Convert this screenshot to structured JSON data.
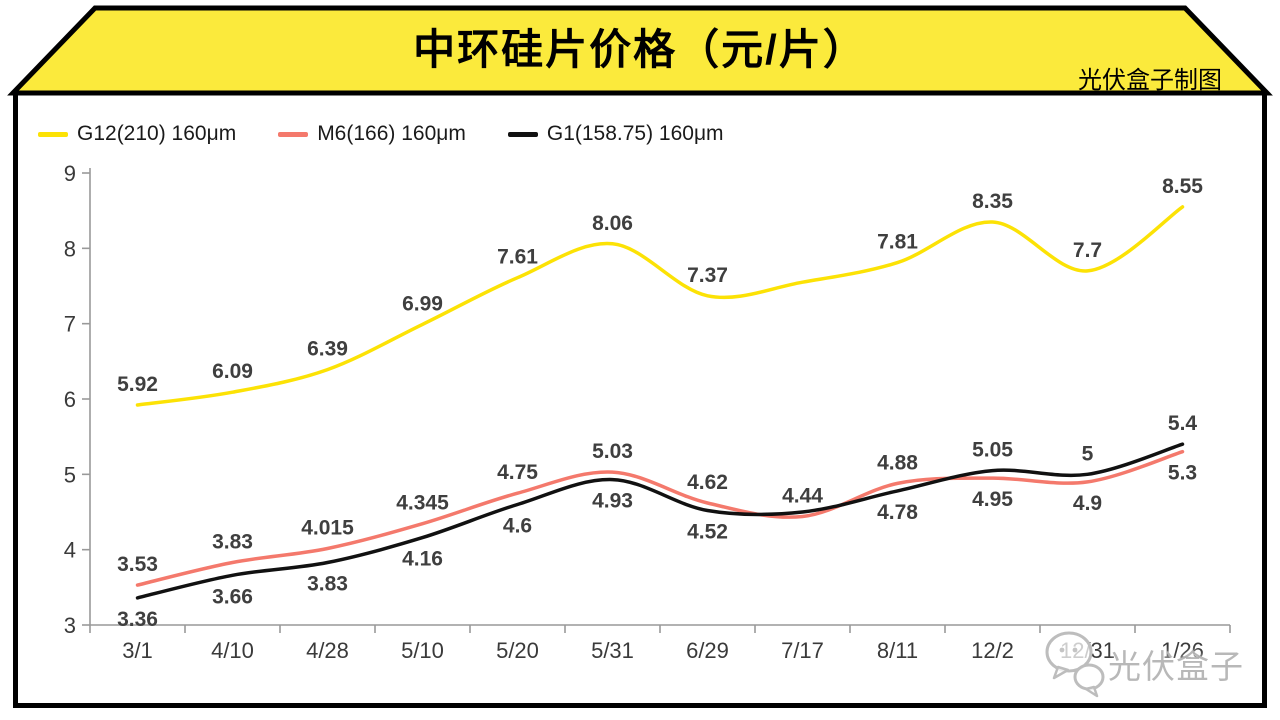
{
  "banner": {
    "title": "中环硅片价格（元/片）",
    "credit": "光伏盒子制图",
    "background_color": "#FBEA3C",
    "border_color": "#000000"
  },
  "legend": {
    "items": [
      {
        "label": "G12(210) 160μm",
        "color": "#FCE205"
      },
      {
        "label": "M6(166) 160μm",
        "color": "#F4796C"
      },
      {
        "label": "G1(158.75) 160μm",
        "color": "#111111"
      }
    ]
  },
  "watermark": {
    "icon": "chat-bubbles-icon",
    "text": "光伏盒子",
    "color": "#BDBDBD"
  },
  "chart_data": {
    "type": "line",
    "title": "中环硅片价格（元/片）",
    "xlabel": "",
    "ylabel": "",
    "ylim": [
      3,
      9
    ],
    "y_ticks": [
      9,
      8,
      7,
      6,
      5,
      4,
      3
    ],
    "grid": false,
    "smooth": true,
    "legend_position": "top-left",
    "axis_color": "#999999",
    "tick_label_color": "#3a3a3a",
    "data_label_color": "#3f3f3f",
    "categories": [
      "3/1",
      "4/10",
      "4/28",
      "5/10",
      "5/20",
      "5/31",
      "6/29",
      "7/17",
      "8/11",
      "12/2",
      "12/31",
      "1/26"
    ],
    "series": [
      {
        "name": "G12(210) 160μm",
        "color": "#FCE205",
        "values": [
          5.92,
          6.09,
          6.39,
          6.99,
          7.61,
          8.06,
          7.37,
          7.55,
          7.81,
          8.35,
          7.7,
          8.55
        ],
        "labels": [
          "5.92",
          "6.09",
          "6.39",
          "6.99",
          "7.61",
          "8.06",
          "7.37",
          "",
          "7.81",
          "8.35",
          "7.7",
          "8.55"
        ],
        "label_side": [
          "a",
          "a",
          "a",
          "a",
          "a",
          "a",
          "a",
          "a",
          "a",
          "a",
          "a",
          "a"
        ]
      },
      {
        "name": "M6(166) 160μm",
        "color": "#F4796C",
        "values": [
          3.53,
          3.83,
          4.015,
          4.345,
          4.75,
          5.03,
          4.62,
          4.44,
          4.88,
          4.95,
          4.9,
          5.3
        ],
        "labels": [
          "3.53",
          "3.83",
          "4.015",
          "4.345",
          "4.75",
          "5.03",
          "4.62",
          "4.44",
          "4.88",
          "4.95",
          "4.9",
          "5.3"
        ],
        "label_side": [
          "a",
          "a",
          "a",
          "a",
          "a",
          "a",
          "a",
          "a",
          "a",
          "b",
          "b",
          "b"
        ]
      },
      {
        "name": "G1(158.75) 160μm",
        "color": "#111111",
        "values": [
          3.36,
          3.66,
          3.83,
          4.16,
          4.6,
          4.93,
          4.52,
          4.5,
          4.78,
          5.05,
          5.0,
          5.4
        ],
        "labels": [
          "3.36",
          "3.66",
          "3.83",
          "4.16",
          "4.6",
          "4.93",
          "4.52",
          "",
          "4.78",
          "5.05",
          "5",
          "5.4"
        ],
        "label_side": [
          "b",
          "b",
          "b",
          "b",
          "b",
          "b",
          "b",
          "b",
          "b",
          "a",
          "a",
          "a"
        ]
      }
    ]
  }
}
